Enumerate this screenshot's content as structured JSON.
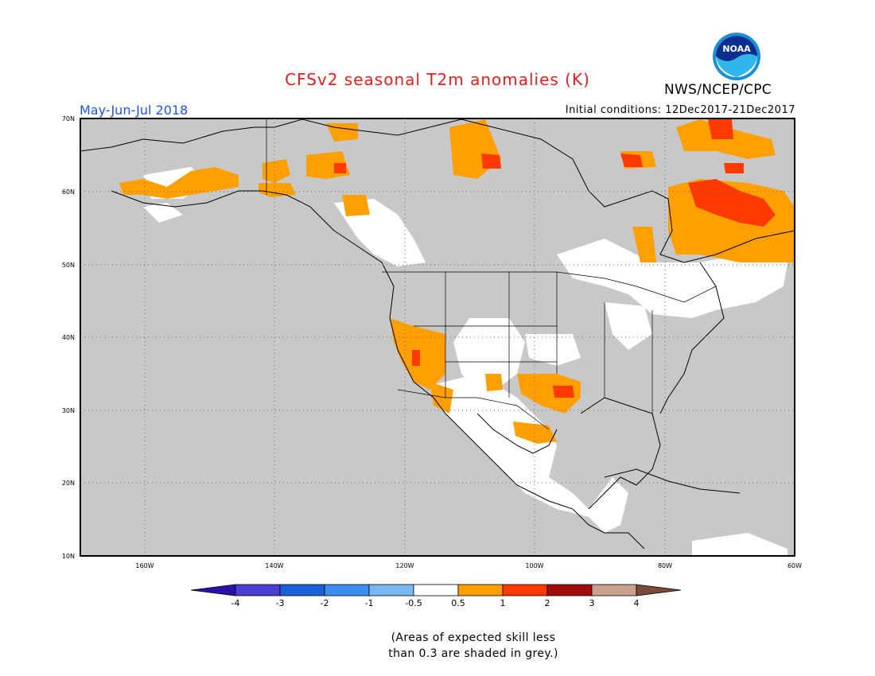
{
  "header": {
    "title": "CFSv2 seasonal T2m anomalies (K)",
    "season": "May-Jun-Jul 2018",
    "initial_conditions": "Initial conditions: 12Dec2017-21Dec2017",
    "agency": "NWS/NCEP/CPC",
    "logo_text": "NOAA"
  },
  "map": {
    "region": "North America",
    "lon_range": [
      -170,
      -60
    ],
    "lat_range": [
      10,
      70
    ],
    "lat_ticks": [
      "70N",
      "60N",
      "50N",
      "40N",
      "30N",
      "20N",
      "10N"
    ],
    "lon_ticks": [
      "160W",
      "140W",
      "120W",
      "100W",
      "80W",
      "60W"
    ],
    "background_color": "#c8c8c8"
  },
  "colorbar": {
    "labels": [
      "-4",
      "-3",
      "-2",
      "-1",
      "-0.5",
      "0.5",
      "1",
      "2",
      "3",
      "4"
    ],
    "colors": [
      "#2a0fa8",
      "#4a3fd0",
      "#1c60d8",
      "#3c8ef0",
      "#7ab8f4",
      "#ffffff",
      "#ff9f00",
      "#ff3a00",
      "#a00c0c",
      "#c8a090",
      "#7a4a3a"
    ]
  },
  "footer": {
    "note_line1": "(Areas of expected skill less",
    "note_line2": "than 0.3 are shaded in grey.)"
  }
}
